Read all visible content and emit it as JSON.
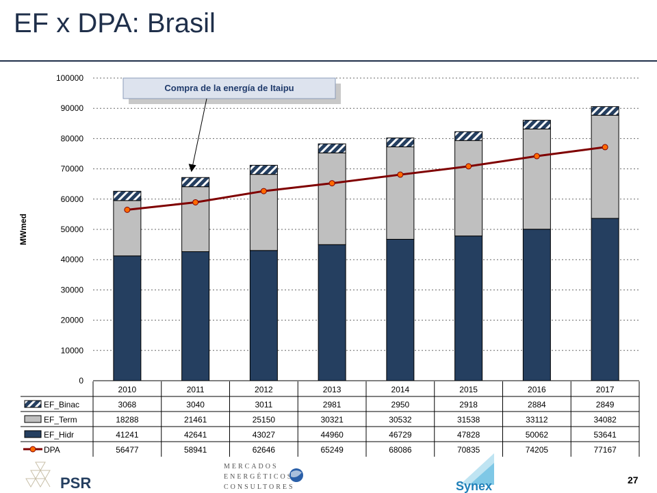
{
  "page": {
    "title": "EF x DPA: Brasil",
    "page_number": "27"
  },
  "logos": {
    "psr": "PSR",
    "mercados_line1": "MERCADOS",
    "mercados_line2": "ENERGÉTICOS",
    "mercados_line3": "CONSULTORES",
    "synex": "Synex"
  },
  "colors": {
    "hidr": "#253f60",
    "term": "#bfbfbf",
    "binac": "#253f60",
    "dpa_line": "#7f0000",
    "dpa_marker": "#ff6a00",
    "title": "#1f2f4a",
    "callout_text": "#1f3a6b",
    "callout_bg": "#dde3ee"
  },
  "chart_data": {
    "type": "bar",
    "stacked": true,
    "ylabel": "MWmed",
    "ylim": [
      0,
      100000
    ],
    "yticks": [
      0,
      10000,
      20000,
      30000,
      40000,
      50000,
      60000,
      70000,
      80000,
      90000,
      100000
    ],
    "grid": true,
    "categories": [
      "2010",
      "2011",
      "2012",
      "2013",
      "2014",
      "2015",
      "2016",
      "2017"
    ],
    "series": [
      {
        "name": "EF_Binac",
        "kind": "bar",
        "pattern": "hatched",
        "values": [
          3068,
          3040,
          3011,
          2981,
          2950,
          2918,
          2884,
          2849
        ]
      },
      {
        "name": "EF_Term",
        "kind": "bar",
        "values": [
          18288,
          21461,
          25150,
          30321,
          30532,
          31538,
          33112,
          34082
        ]
      },
      {
        "name": "EF_Hidr",
        "kind": "bar",
        "values": [
          41241,
          42641,
          43027,
          44960,
          46729,
          47828,
          50062,
          53641
        ]
      },
      {
        "name": "DPA",
        "kind": "line",
        "values": [
          56477,
          58941,
          62646,
          65249,
          68086,
          70835,
          74205,
          77167
        ]
      }
    ],
    "annotation": {
      "text": "Compra de la energía de Itaipu",
      "points_to_category": "2011"
    }
  }
}
